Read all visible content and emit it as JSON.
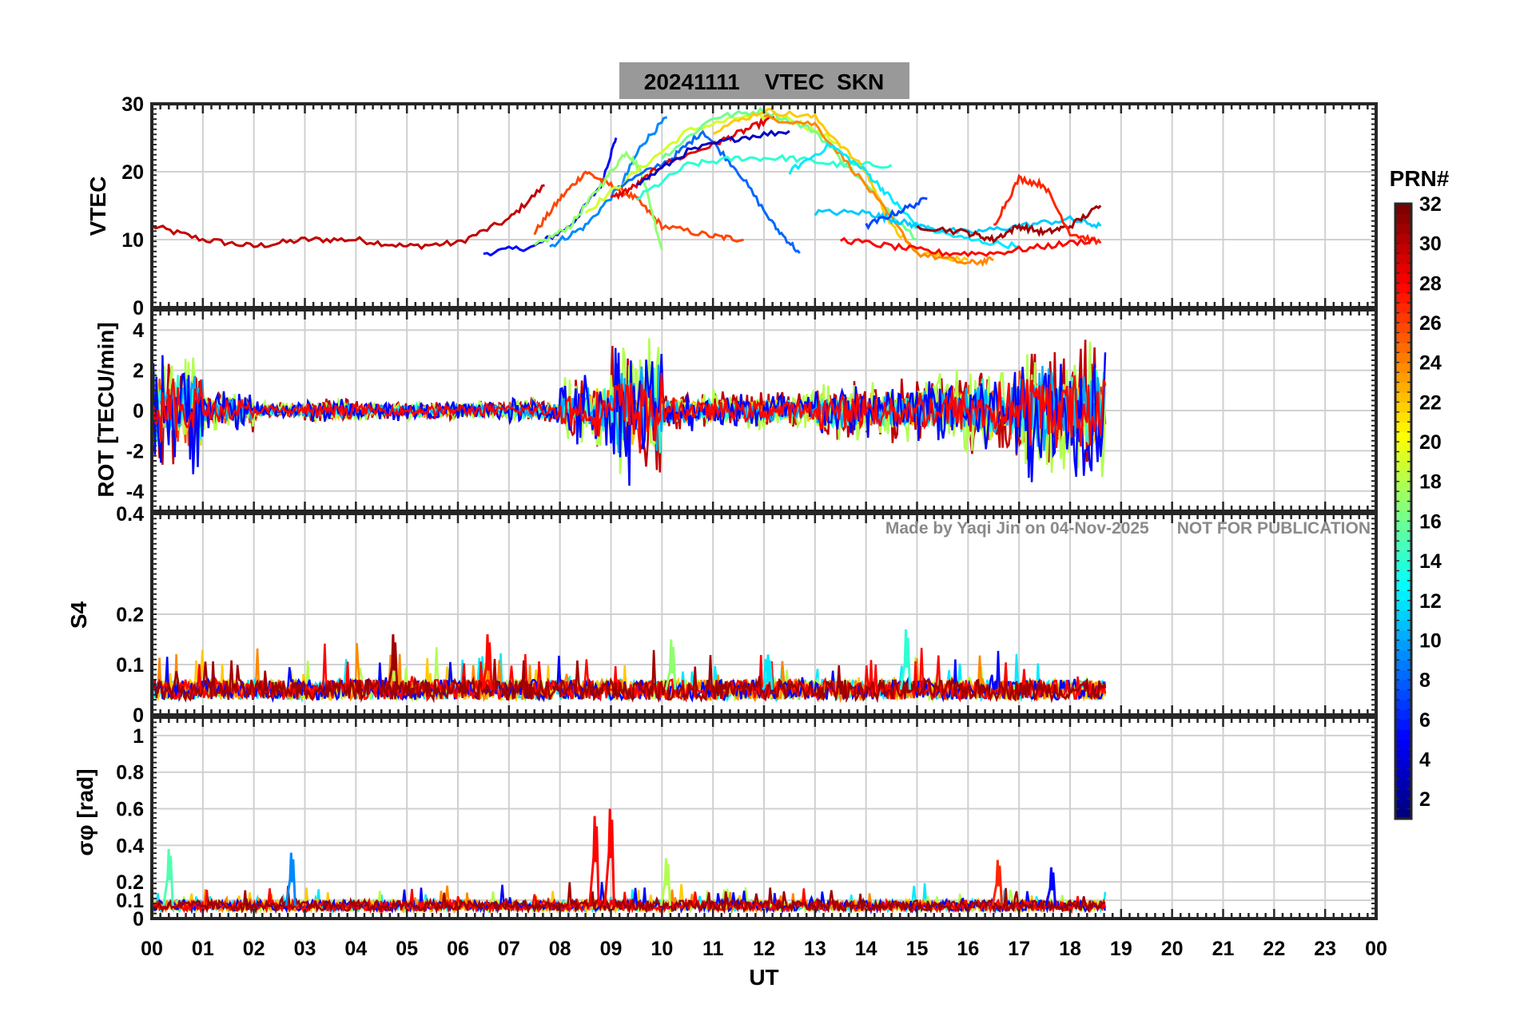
{
  "title": "20241111    VTEC  SKN",
  "watermark": "Made by Yaqi Jin on 04-Nov-2025      NOT FOR PUBLICATION",
  "xaxis": {
    "label": "UT",
    "ticks": [
      "00",
      "01",
      "02",
      "03",
      "04",
      "05",
      "06",
      "07",
      "08",
      "09",
      "10",
      "11",
      "12",
      "13",
      "14",
      "15",
      "16",
      "17",
      "18",
      "19",
      "20",
      "21",
      "22",
      "23",
      "00"
    ],
    "range_hours": [
      0,
      24
    ]
  },
  "colorbar": {
    "label": "PRN#",
    "range": [
      1,
      32
    ],
    "ticks": [
      "2",
      "4",
      "6",
      "8",
      "10",
      "12",
      "14",
      "16",
      "18",
      "20",
      "22",
      "24",
      "26",
      "28",
      "30",
      "32"
    ],
    "colormap": "jet"
  },
  "chart_data": [
    {
      "type": "line",
      "panel": "vtec",
      "ylabel": "VTEC",
      "ylim": [
        0,
        30
      ],
      "yticks": [
        "0",
        "10",
        "20",
        "30"
      ],
      "grid": true,
      "series": [
        {
          "prn": 30,
          "x": [
            0,
            1,
            2,
            3,
            4,
            5,
            6,
            7,
            7.7
          ],
          "y": [
            12,
            10,
            9,
            10,
            10,
            9,
            9.5,
            13,
            18
          ]
        },
        {
          "prn": 5,
          "x": [
            6.5,
            7.5,
            8.2,
            8.8,
            9.1
          ],
          "y": [
            8,
            9,
            12,
            18,
            25
          ]
        },
        {
          "prn": 26,
          "x": [
            7.5,
            8,
            8.5,
            9,
            9.5,
            10,
            11,
            11.6
          ],
          "y": [
            11,
            16,
            20,
            18,
            16,
            12,
            10.5,
            10
          ]
        },
        {
          "prn": 9,
          "x": [
            7.8,
            8.5,
            9.2,
            9.6,
            10.1
          ],
          "y": [
            9,
            12,
            18,
            24,
            28
          ]
        },
        {
          "prn": 17,
          "x": [
            7.5,
            8.2,
            8.8,
            9.3,
            9.6,
            10
          ],
          "y": [
            9,
            12,
            18,
            23,
            20,
            8.5
          ]
        },
        {
          "prn": 19,
          "x": [
            8.5,
            9.5,
            10.5,
            11.5,
            12.5,
            13.5
          ],
          "y": [
            14,
            20,
            26,
            28,
            28,
            24
          ]
        },
        {
          "prn": 8,
          "x": [
            9.2,
            10.2,
            10.8,
            11.5,
            12.2,
            12.7
          ],
          "y": [
            18,
            22,
            26,
            20,
            12,
            8
          ]
        },
        {
          "prn": 29,
          "x": [
            9,
            9.5,
            10,
            11,
            11.6,
            12.2
          ],
          "y": [
            16,
            18,
            21,
            24,
            26,
            28
          ]
        },
        {
          "prn": 14,
          "x": [
            9.5,
            10.5,
            11.5,
            12.5,
            13.5,
            14.5
          ],
          "y": [
            16,
            21,
            22,
            22,
            21,
            21
          ]
        },
        {
          "prn": 3,
          "x": [
            9.5,
            10.5,
            11.5,
            12.5
          ],
          "y": [
            18,
            23,
            25,
            26
          ]
        },
        {
          "prn": 16,
          "x": [
            10,
            11,
            12,
            13,
            14,
            15
          ],
          "y": [
            22,
            28,
            29,
            26,
            18,
            10
          ]
        },
        {
          "prn": 22,
          "x": [
            11,
            12,
            13,
            14,
            14.5,
            15,
            16
          ],
          "y": [
            26,
            29,
            28,
            20,
            12,
            8,
            7
          ]
        },
        {
          "prn": 24,
          "x": [
            12,
            13,
            14,
            15,
            16,
            16.5
          ],
          "y": [
            28,
            27,
            18,
            8,
            6.5,
            7
          ]
        },
        {
          "prn": 12,
          "x": [
            12.5,
            13.3,
            14,
            14.5,
            15,
            16,
            17
          ],
          "y": [
            20,
            24,
            20,
            16,
            12,
            10,
            9
          ]
        },
        {
          "prn": 11,
          "x": [
            13,
            14,
            14.5,
            15,
            16,
            17,
            18,
            18.6
          ],
          "y": [
            14,
            14,
            13,
            12,
            11,
            12,
            13,
            12
          ]
        },
        {
          "prn": 7,
          "x": [
            14,
            14.6,
            15.2
          ],
          "y": [
            12,
            14,
            16
          ]
        },
        {
          "prn": 31,
          "x": [
            15,
            16,
            16.5,
            17,
            17.5,
            18,
            18.6
          ],
          "y": [
            12,
            11,
            10,
            12,
            11,
            12,
            15
          ]
        },
        {
          "prn": 27,
          "x": [
            16.5,
            17,
            17.5,
            18,
            18.6
          ],
          "y": [
            12,
            19,
            18,
            11,
            9.5
          ]
        },
        {
          "prn": 28,
          "x": [
            13.5,
            14.5,
            15.5,
            16.5,
            17.5,
            18.5
          ],
          "y": [
            10,
            9,
            8,
            8,
            9,
            10
          ]
        }
      ]
    },
    {
      "type": "line",
      "panel": "rot",
      "ylabel": "ROT [TECU/min]",
      "ylim": [
        -5,
        5
      ],
      "yticks": [
        "-4",
        "-2",
        "0",
        "2",
        "4"
      ],
      "grid": true,
      "activity_by_hour": [
        3,
        1,
        0.5,
        0.6,
        0.5,
        0.5,
        0.5,
        0.7,
        2,
        3.5,
        1,
        1,
        1,
        1.5,
        1.5,
        2,
        2.5,
        3.5,
        3.5,
        0
      ],
      "last_hour_with_data": 18.7
    },
    {
      "type": "line",
      "panel": "s4",
      "ylabel": "S4",
      "ylim": [
        0,
        0.4
      ],
      "yticks": [
        "0",
        "0.1",
        "0.2",
        "0.4"
      ],
      "grid": true,
      "baseline": 0.05,
      "peaks": [
        {
          "x": 4.75,
          "y": 0.16,
          "prn": 31
        },
        {
          "x": 6.6,
          "y": 0.16,
          "prn": 28
        },
        {
          "x": 10.2,
          "y": 0.15,
          "prn": 17
        },
        {
          "x": 14.8,
          "y": 0.17,
          "prn": 14
        },
        {
          "x": 12.1,
          "y": 0.12,
          "prn": 12
        }
      ],
      "last_hour_with_data": 18.7
    },
    {
      "type": "line",
      "panel": "sigma_phi",
      "ylabel": "σφ [rad]",
      "ylim": [
        0,
        1.1
      ],
      "yticks": [
        "0",
        "0.1",
        "0.2",
        "0.4",
        "0.6",
        "0.8",
        "1"
      ],
      "grid": true,
      "baseline": 0.07,
      "peaks": [
        {
          "x": 0.35,
          "y": 0.38,
          "prn": 15
        },
        {
          "x": 2.75,
          "y": 0.36,
          "prn": 9
        },
        {
          "x": 8.7,
          "y": 0.56,
          "prn": 28
        },
        {
          "x": 9.0,
          "y": 0.6,
          "prn": 28
        },
        {
          "x": 10.1,
          "y": 0.33,
          "prn": 18
        },
        {
          "x": 16.6,
          "y": 0.32,
          "prn": 27
        },
        {
          "x": 17.65,
          "y": 0.28,
          "prn": 5
        }
      ],
      "last_hour_with_data": 18.7
    }
  ]
}
